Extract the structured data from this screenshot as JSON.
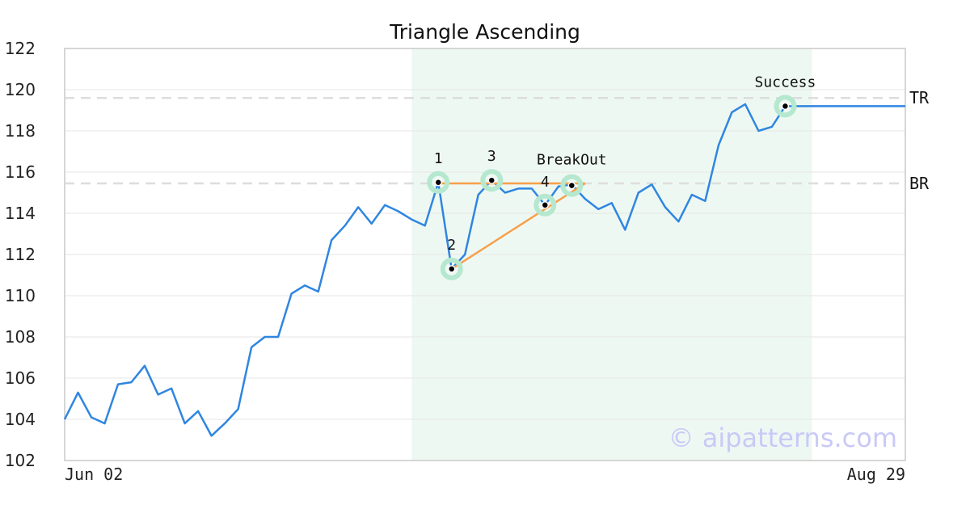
{
  "chart_data": {
    "type": "line",
    "title": "Triangle Ascending",
    "xlabel": "",
    "ylabel": "",
    "ylim": [
      102,
      122
    ],
    "yticks": [
      102,
      104,
      106,
      108,
      110,
      112,
      114,
      116,
      118,
      120,
      122
    ],
    "x_tick_labels": [
      {
        "label": "Jun 02",
        "x": 0
      },
      {
        "label": "Aug 29",
        "x": 63
      }
    ],
    "grid": "horizontal",
    "series": [
      {
        "color": "#2f86e0",
        "x": [
          0,
          1,
          2,
          3,
          4,
          5,
          6,
          7,
          8,
          9,
          10,
          11,
          12,
          13,
          14,
          15,
          16,
          17,
          18,
          19,
          20,
          21,
          22,
          23,
          24,
          25,
          26,
          27,
          28,
          29,
          30,
          31,
          32,
          33,
          34,
          35,
          36,
          37,
          38,
          39,
          40,
          41,
          42,
          43,
          44,
          45,
          46,
          47,
          48,
          49,
          50,
          51,
          52,
          53,
          54,
          55,
          56,
          57,
          58,
          59,
          60,
          61,
          62,
          63
        ],
        "values": [
          104.0,
          105.3,
          104.1,
          103.8,
          105.7,
          105.8,
          106.6,
          105.2,
          105.5,
          103.8,
          104.4,
          103.2,
          103.8,
          104.5,
          107.5,
          108.0,
          108.0,
          110.1,
          110.5,
          110.2,
          112.7,
          113.4,
          114.3,
          113.5,
          114.4,
          114.1,
          113.7,
          113.4,
          115.5,
          111.3,
          112.0,
          114.9,
          115.6,
          115.0,
          115.2,
          115.2,
          114.4,
          115.3,
          115.4,
          114.7,
          114.2,
          114.5,
          113.2,
          115.0,
          115.4,
          114.3,
          113.6,
          114.9,
          114.6,
          117.3,
          118.9,
          119.3,
          118.0,
          118.2,
          119.2,
          119.2,
          119.2,
          119.2,
          119.2,
          119.2,
          119.2,
          119.2,
          119.2,
          119.2
        ]
      }
    ],
    "levels": [
      {
        "name": "TR",
        "value": 119.6
      },
      {
        "name": "BR",
        "value": 115.45
      }
    ],
    "pattern_region": {
      "x_start": 26,
      "x_end": 56,
      "color": "#eef8f3"
    },
    "pattern_lines": [
      {
        "points": [
          [
            28,
            115.45
          ],
          [
            39,
            115.45
          ]
        ],
        "color": "#f7a04a"
      },
      {
        "points": [
          [
            29,
            111.3
          ],
          [
            39,
            115.45
          ]
        ],
        "color": "#f7a04a"
      }
    ],
    "annotations": [
      {
        "label": "1",
        "x": 28,
        "y": 115.5
      },
      {
        "label": "2",
        "x": 29,
        "y": 111.3
      },
      {
        "label": "3",
        "x": 32,
        "y": 115.6
      },
      {
        "label": "4",
        "x": 36,
        "y": 114.4
      },
      {
        "label": "BreakOut",
        "x": 38,
        "y": 115.35
      },
      {
        "label": "Success",
        "x": 54,
        "y": 119.2
      }
    ],
    "watermark": "© aipatterns.com"
  }
}
